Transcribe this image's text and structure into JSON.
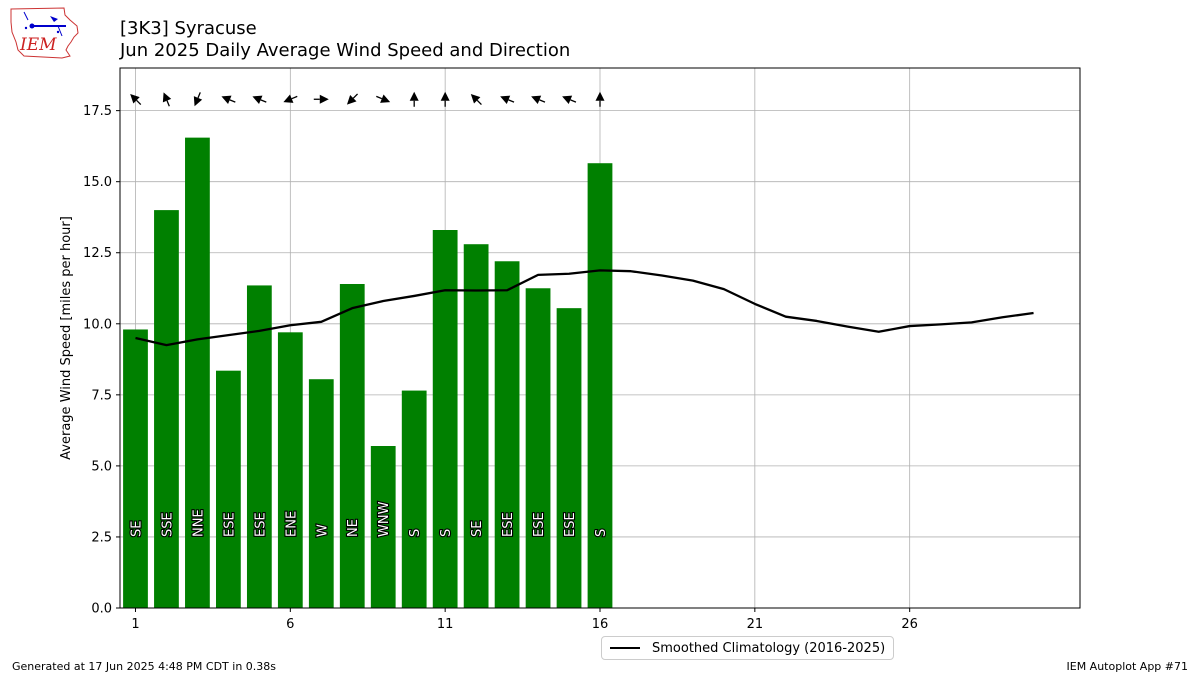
{
  "header": {
    "title_line1": "[3K3] Syracuse",
    "title_line2": "Jun 2025 Daily Average Wind Speed and Direction"
  },
  "logo": {
    "text": "IEM",
    "icon": "iem-logo-icon"
  },
  "footer": {
    "generated": "Generated at 17 Jun 2025 4:48 PM CDT in 0.38s",
    "app": "IEM Autoplot App #71"
  },
  "colors": {
    "bars": "#008000",
    "line": "#000000",
    "grid": "#b0b0b0",
    "arrows": "#000000"
  },
  "chart_data": {
    "type": "bar",
    "ylabel": "Average Wind Speed [miles per hour]",
    "xlim": [
      0.5,
      31.5
    ],
    "ylim": [
      0,
      19
    ],
    "xticks": [
      1,
      6,
      11,
      16,
      21,
      26
    ],
    "yticks": [
      0.0,
      2.5,
      5.0,
      7.5,
      10.0,
      12.5,
      15.0,
      17.5
    ],
    "grid": true,
    "legend_position": "bottom-center",
    "bars": {
      "days": [
        1,
        2,
        3,
        4,
        5,
        6,
        7,
        8,
        9,
        10,
        11,
        12,
        13,
        14,
        15,
        16
      ],
      "values": [
        9.8,
        14.0,
        16.55,
        8.35,
        11.35,
        9.7,
        8.05,
        11.4,
        5.7,
        7.65,
        13.3,
        12.8,
        12.2,
        11.25,
        10.55,
        15.65
      ],
      "direction_labels": [
        "SE",
        "SSE",
        "NNE",
        "ESE",
        "ESE",
        "ENE",
        "W",
        "NE",
        "WNW",
        "S",
        "S",
        "SE",
        "ESE",
        "ESE",
        "ESE",
        "S"
      ],
      "direction_degrees": [
        135,
        157.5,
        22.5,
        112.5,
        112.5,
        67.5,
        270,
        45,
        292.5,
        180,
        180,
        135,
        112.5,
        112.5,
        112.5,
        180
      ]
    },
    "series": [
      {
        "name": "Smoothed Climatology (2016-2025)",
        "x": [
          1,
          2,
          3,
          4,
          5,
          6,
          7,
          8,
          9,
          10,
          11,
          12,
          13,
          14,
          15,
          16,
          17,
          18,
          19,
          20,
          21,
          22,
          23,
          24,
          25,
          26,
          27,
          28,
          29,
          30
        ],
        "values": [
          9.5,
          9.25,
          9.45,
          9.6,
          9.75,
          9.95,
          10.07,
          10.55,
          10.8,
          10.98,
          11.18,
          11.17,
          11.18,
          11.72,
          11.76,
          11.88,
          11.85,
          11.7,
          11.52,
          11.22,
          10.7,
          10.25,
          10.1,
          9.9,
          9.72,
          9.92,
          9.98,
          10.05,
          10.23,
          10.38
        ]
      }
    ]
  }
}
